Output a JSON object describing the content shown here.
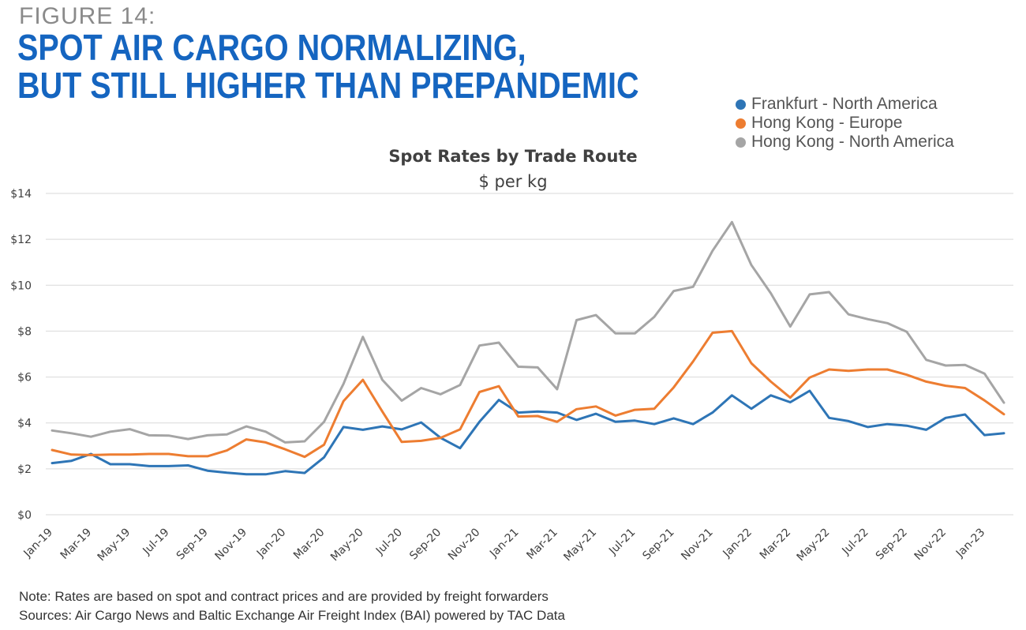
{
  "figure_label": "FIGURE 14:",
  "headline": {
    "line1": "SPOT AIR CARGO NORMALIZING,",
    "line2": "BUT STILL HIGHER THAN PREPANDEMIC"
  },
  "footnotes": {
    "note": "Note: Rates are based on spot and contract prices and are provided by freight forwarders",
    "sources": "Sources: Air Cargo News and Baltic Exchange Air Freight Index (BAI) powered by TAC Data"
  },
  "chart_data": {
    "type": "line",
    "title": "Spot Rates by Trade Route",
    "subtitle": "$ per kg",
    "xlabel": "",
    "ylabel": "",
    "ylim": [
      0,
      14
    ],
    "y_ticks": [
      0,
      2,
      4,
      6,
      8,
      10,
      12,
      14
    ],
    "y_tick_labels": [
      "$0",
      "$2",
      "$4",
      "$6",
      "$8",
      "$10",
      "$12",
      "$14"
    ],
    "grid": "horizontal",
    "legend_position": "top-right",
    "x": [
      "Jan-19",
      "Feb-19",
      "Mar-19",
      "Apr-19",
      "May-19",
      "Jun-19",
      "Jul-19",
      "Aug-19",
      "Sep-19",
      "Oct-19",
      "Nov-19",
      "Dec-19",
      "Jan-20",
      "Feb-20",
      "Mar-20",
      "Apr-20",
      "May-20",
      "Jun-20",
      "Jul-20",
      "Aug-20",
      "Sep-20",
      "Oct-20",
      "Nov-20",
      "Dec-20",
      "Jan-21",
      "Feb-21",
      "Mar-21",
      "Apr-21",
      "May-21",
      "Jun-21",
      "Jul-21",
      "Aug-21",
      "Sep-21",
      "Oct-21",
      "Nov-21",
      "Dec-21",
      "Jan-22",
      "Feb-22",
      "Mar-22",
      "Apr-22",
      "May-22",
      "Jun-22",
      "Jul-22",
      "Aug-22",
      "Sep-22",
      "Oct-22",
      "Nov-22",
      "Dec-22",
      "Jan-23",
      "Feb-23"
    ],
    "x_tick_labels": [
      "Jan-19",
      "Mar-19",
      "May-19",
      "Jul-19",
      "Sep-19",
      "Nov-19",
      "Jan-20",
      "Mar-20",
      "May-20",
      "Jul-20",
      "Sep-20",
      "Nov-20",
      "Jan-21",
      "Mar-21",
      "May-21",
      "Jul-21",
      "Sep-21",
      "Nov-21",
      "Jan-22",
      "Mar-22",
      "May-22",
      "Jul-22",
      "Sep-22",
      "Nov-22",
      "Jan-23"
    ],
    "series": [
      {
        "name": "Frankfurt - North America",
        "color": "#2e75b6",
        "values": [
          2.25,
          2.35,
          2.65,
          2.2,
          2.2,
          2.12,
          2.12,
          2.15,
          1.92,
          1.83,
          1.76,
          1.76,
          1.9,
          1.82,
          2.5,
          3.82,
          3.7,
          3.85,
          3.72,
          4.02,
          3.35,
          2.9,
          4.05,
          5.0,
          4.45,
          4.5,
          4.45,
          4.13,
          4.4,
          4.05,
          4.1,
          3.95,
          4.2,
          3.95,
          4.45,
          5.2,
          4.62,
          5.2,
          4.9,
          5.4,
          4.22,
          4.08,
          3.82,
          3.95,
          3.88,
          3.7,
          4.22,
          4.37,
          3.47,
          3.55
        ]
      },
      {
        "name": "Hong Kong - Europe",
        "color": "#ed7d31",
        "values": [
          2.82,
          2.62,
          2.6,
          2.62,
          2.62,
          2.65,
          2.65,
          2.55,
          2.55,
          2.8,
          3.28,
          3.15,
          2.85,
          2.52,
          3.05,
          4.95,
          5.88,
          4.5,
          3.17,
          3.22,
          3.35,
          3.72,
          5.35,
          5.6,
          4.28,
          4.3,
          4.05,
          4.6,
          4.72,
          4.32,
          4.57,
          4.62,
          5.55,
          6.68,
          7.93,
          8.0,
          6.6,
          5.8,
          5.1,
          5.98,
          6.33,
          6.27,
          6.33,
          6.33,
          6.1,
          5.8,
          5.62,
          5.52,
          4.98,
          4.38
        ]
      },
      {
        "name": "Hong Kong - North America",
        "color": "#a5a5a5",
        "values": [
          3.67,
          3.55,
          3.4,
          3.62,
          3.73,
          3.46,
          3.45,
          3.3,
          3.46,
          3.5,
          3.85,
          3.62,
          3.15,
          3.2,
          4.05,
          5.7,
          7.75,
          5.88,
          4.97,
          5.52,
          5.25,
          5.65,
          7.37,
          7.5,
          6.45,
          6.42,
          5.47,
          8.48,
          8.7,
          7.9,
          7.9,
          8.62,
          9.75,
          9.93,
          11.5,
          12.75,
          10.88,
          9.65,
          8.2,
          9.6,
          9.7,
          8.73,
          8.52,
          8.35,
          7.97,
          6.75,
          6.5,
          6.53,
          6.15,
          4.88
        ]
      }
    ]
  }
}
